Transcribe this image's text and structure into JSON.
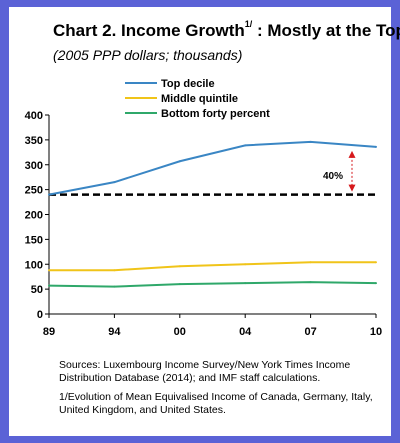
{
  "title": {
    "main": "Chart 2. Income Growth",
    "sup": "1/",
    "rest": " : Mostly at the Top"
  },
  "subtitle": "(2005 PPP dollars; thousands)",
  "chart_data": {
    "type": "line",
    "categories": [
      "89",
      "94",
      "00",
      "04",
      "07",
      "10"
    ],
    "ylim": [
      0,
      400
    ],
    "yticks": [
      0,
      50,
      100,
      150,
      200,
      250,
      300,
      350,
      400
    ],
    "grid": false,
    "legend_position": "top-left",
    "series": [
      {
        "name": "Top decile",
        "color": "#3a86c4",
        "values": [
          240,
          265,
          307,
          339,
          346,
          336
        ]
      },
      {
        "name": "Middle quintile",
        "color": "#f0c419",
        "values": [
          88,
          88,
          96,
          100,
          104,
          104
        ]
      },
      {
        "name": "Bottom forty percent",
        "color": "#2fa86a",
        "values": [
          57,
          55,
          60,
          62,
          64,
          62
        ]
      }
    ],
    "reference_line": {
      "value": 240,
      "style": "dashed",
      "color": "#000000"
    },
    "annotation": {
      "label": "40%",
      "from": 240,
      "to": 336,
      "color": "#d6191c"
    }
  },
  "notes": [
    "Sources: Luxembourg Income Survey/New York Times Income Distribution Database (2014); and IMF staff calculations.",
    "1/Evolution of Mean Equivalised Income of Canada, Germany, Italy, United Kingdom, and United States."
  ]
}
